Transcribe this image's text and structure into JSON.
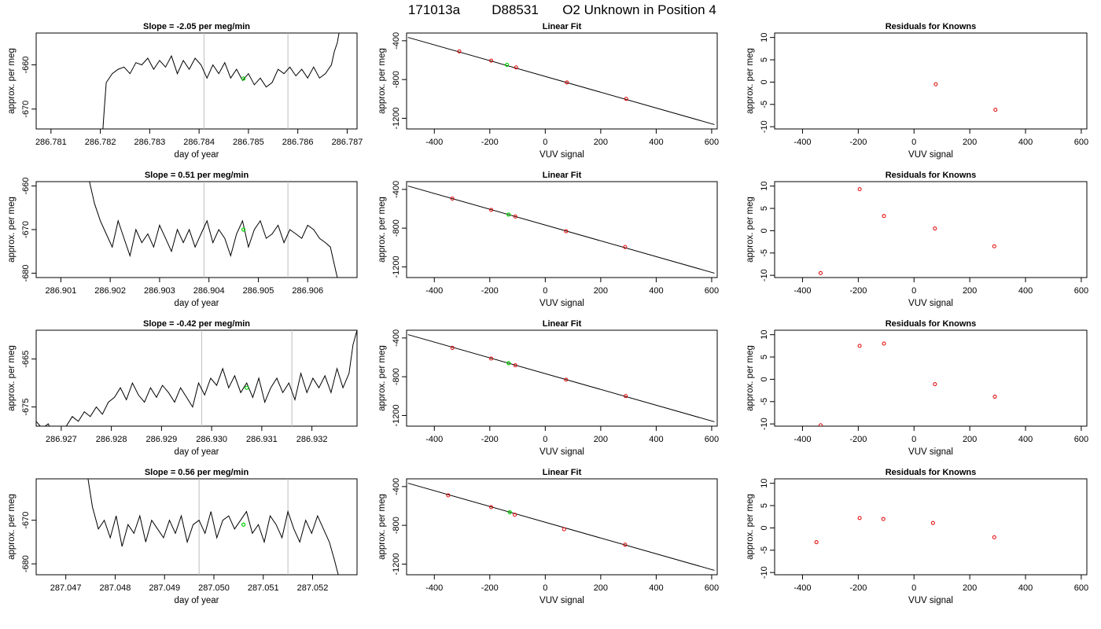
{
  "figure": {
    "title_parts": [
      "171013a",
      "D88531",
      "O2 Unknown in Position  4"
    ]
  },
  "chart_data": [
    {
      "type": "line",
      "title": "Slope =  -2.05  per meg/min",
      "xlabel": "day of year",
      "ylabel": "approx. per meg",
      "xlim": [
        286.7807,
        286.7872
      ],
      "ylim": [
        -674.5,
        -652.8
      ],
      "x_ticks": [
        286.781,
        286.782,
        286.783,
        286.784,
        286.785,
        286.786,
        286.787
      ],
      "x_tick_labels": [
        "286.781",
        "286.782",
        "286.783",
        "286.784",
        "286.785",
        "286.786",
        "286.787"
      ],
      "y_ticks": [
        -670,
        -660
      ],
      "y_tick_labels": [
        "-670",
        "-660"
      ],
      "vlines": [
        286.7841,
        286.7858
      ],
      "marker": {
        "x": 286.7849,
        "y": -663.1
      },
      "trace_x": [
        286.78205,
        286.78208,
        286.78212,
        286.78224,
        286.78236,
        286.78248,
        286.7826,
        286.78272,
        286.78284,
        286.78296,
        286.78308,
        286.7832,
        286.78332,
        286.78344,
        286.78356,
        286.78368,
        286.7838,
        286.78392,
        286.78404,
        286.78416,
        286.78428,
        286.7844,
        286.78452,
        286.78464,
        286.78476,
        286.78488,
        286.785,
        286.78512,
        286.78524,
        286.78536,
        286.78548,
        286.7856,
        286.78572,
        286.78584,
        286.78596,
        286.78608,
        286.7862,
        286.78632,
        286.78644,
        286.78656,
        286.78668,
        286.78674,
        286.7868,
        286.78684
      ],
      "trace_y": [
        -675,
        -670,
        -664,
        -662,
        -661,
        -660.5,
        -662,
        -659.5,
        -660,
        -658.5,
        -661,
        -659,
        -660.5,
        -658,
        -662,
        -659,
        -661,
        -658.5,
        -660,
        -663,
        -660,
        -662,
        -659.5,
        -663,
        -661,
        -663.5,
        -662,
        -664.5,
        -663,
        -665,
        -664,
        -661,
        -662,
        -660.5,
        -662.5,
        -661,
        -663,
        -660.5,
        -663,
        -662,
        -660,
        -657,
        -655,
        -652.5
      ]
    },
    {
      "type": "scatter",
      "title": "Linear Fit",
      "xlabel": "VUV signal",
      "ylabel": "approx. per meg",
      "xlim": [
        -500,
        620
      ],
      "ylim": [
        -1310,
        -320
      ],
      "x_ticks": [
        -400,
        -200,
        0,
        200,
        400,
        600
      ],
      "x_tick_labels": [
        "-400",
        "-200",
        "0",
        "200",
        "400",
        "600"
      ],
      "y_ticks": [
        -1200,
        -800,
        -400
      ],
      "y_tick_labels": [
        "-1200",
        "-800",
        "-400"
      ],
      "fit_line": {
        "x": [
          -495,
          610
        ],
        "y": [
          -365,
          -1265
        ]
      },
      "points": {
        "x": [
          -310,
          -195,
          -105,
          78,
          292
        ],
        "y": [
          -510,
          -605,
          -675,
          -830,
          -1000
        ]
      },
      "unknown": {
        "x": -138,
        "y": -648
      }
    },
    {
      "type": "scatter",
      "title": "Residuals for Knowns",
      "xlabel": "VUV signal",
      "ylabel": "approx. per meg",
      "xlim": [
        -500,
        620
      ],
      "ylim": [
        -10.5,
        11
      ],
      "x_ticks": [
        -400,
        -200,
        0,
        200,
        400,
        600
      ],
      "x_tick_labels": [
        "-400",
        "-200",
        "0",
        "200",
        "400",
        "600"
      ],
      "y_ticks": [
        -10,
        -5,
        0,
        5,
        10
      ],
      "y_tick_labels": [
        "-10",
        "-5",
        "0",
        "5",
        "10"
      ],
      "points": {
        "x": [
          78,
          292
        ],
        "y": [
          -0.5,
          -6.2
        ]
      }
    },
    {
      "type": "line",
      "title": "Slope =  0.51  per meg/min",
      "xlabel": "day of year",
      "ylabel": "approx. per meg",
      "xlim": [
        286.9005,
        286.907
      ],
      "ylim": [
        -681,
        -659
      ],
      "x_ticks": [
        286.901,
        286.902,
        286.903,
        286.904,
        286.905,
        286.906
      ],
      "x_tick_labels": [
        "286.901",
        "286.902",
        "286.903",
        "286.904",
        "286.905",
        "286.906"
      ],
      "y_ticks": [
        -680,
        -670,
        -660
      ],
      "y_tick_labels": [
        "-680",
        "-670",
        "-660"
      ],
      "vlines": [
        286.9039,
        286.9056
      ],
      "marker": {
        "x": 286.9047,
        "y": -670
      },
      "trace_x": [
        286.90158,
        286.90168,
        286.9018,
        286.90192,
        286.90204,
        286.90216,
        286.90228,
        286.9024,
        286.90252,
        286.90264,
        286.90276,
        286.90288,
        286.903,
        286.90312,
        286.90324,
        286.90336,
        286.90348,
        286.9036,
        286.90372,
        286.90384,
        286.90396,
        286.90408,
        286.9042,
        286.90432,
        286.90444,
        286.90456,
        286.90468,
        286.9048,
        286.90492,
        286.90504,
        286.90516,
        286.90528,
        286.9054,
        286.90552,
        286.90564,
        286.90576,
        286.90588,
        286.906,
        286.90612,
        286.90624,
        286.90636,
        286.90646,
        286.90654,
        286.9066
      ],
      "trace_y": [
        -659,
        -664,
        -668,
        -671,
        -674,
        -668,
        -672,
        -676,
        -670,
        -673,
        -671,
        -674,
        -669,
        -672,
        -675,
        -670,
        -673,
        -670,
        -674,
        -671,
        -668,
        -673,
        -670,
        -672,
        -676,
        -671,
        -668,
        -674,
        -670,
        -668,
        -672,
        -671,
        -669,
        -673,
        -670,
        -671,
        -672,
        -669,
        -670,
        -672,
        -673,
        -674,
        -678,
        -681
      ]
    },
    {
      "type": "scatter",
      "title": "Linear Fit",
      "xlabel": "VUV signal",
      "ylabel": "approx. per meg",
      "xlim": [
        -500,
        620
      ],
      "ylim": [
        -1310,
        -320
      ],
      "x_ticks": [
        -400,
        -200,
        0,
        200,
        400,
        600
      ],
      "x_tick_labels": [
        "-400",
        "-200",
        "0",
        "200",
        "400",
        "600"
      ],
      "y_ticks": [
        -1200,
        -800,
        -400
      ],
      "y_tick_labels": [
        "-1200",
        "-800",
        "-400"
      ],
      "fit_line": {
        "x": [
          -495,
          610
        ],
        "y": [
          -365,
          -1265
        ]
      },
      "points": {
        "x": [
          -335,
          -195,
          -108,
          75,
          288
        ],
        "y": [
          -495,
          -612,
          -680,
          -832,
          -995
        ]
      },
      "unknown": {
        "x": -132,
        "y": -660
      }
    },
    {
      "type": "scatter",
      "title": "Residuals for Knowns",
      "xlabel": "VUV signal",
      "ylabel": "approx. per meg",
      "xlim": [
        -500,
        620
      ],
      "ylim": [
        -10.5,
        11
      ],
      "x_ticks": [
        -400,
        -200,
        0,
        200,
        400,
        600
      ],
      "x_tick_labels": [
        "-400",
        "-200",
        "0",
        "200",
        "400",
        "600"
      ],
      "y_ticks": [
        -10,
        -5,
        0,
        5,
        10
      ],
      "y_tick_labels": [
        "-10",
        "-5",
        "0",
        "5",
        "10"
      ],
      "points": {
        "x": [
          -335,
          -195,
          -108,
          75,
          288
        ],
        "y": [
          -9.5,
          9.3,
          3.3,
          0.5,
          -3.5
        ]
      }
    },
    {
      "type": "line",
      "title": "Slope =  -0.42  per meg/min",
      "xlabel": "day of year",
      "ylabel": "approx. per meg",
      "xlim": [
        286.9265,
        286.9329
      ],
      "ylim": [
        -679,
        -659
      ],
      "x_ticks": [
        286.927,
        286.928,
        286.929,
        286.93,
        286.931,
        286.932
      ],
      "x_tick_labels": [
        "286.927",
        "286.928",
        "286.929",
        "286.930",
        "286.931",
        "286.932"
      ],
      "y_ticks": [
        -675,
        -665
      ],
      "y_tick_labels": [
        "-675",
        "-665"
      ],
      "vlines": [
        286.9298,
        286.9316
      ],
      "marker": {
        "x": 286.9307,
        "y": -671
      },
      "trace_x": [
        286.9265,
        286.92662,
        286.92674,
        286.92686,
        286.92698,
        286.9271,
        286.92722,
        286.92734,
        286.92746,
        286.92758,
        286.9277,
        286.92782,
        286.92794,
        286.92806,
        286.92818,
        286.9283,
        286.92842,
        286.92854,
        286.92866,
        286.92878,
        286.9289,
        286.92902,
        286.92914,
        286.92926,
        286.92938,
        286.9295,
        286.92962,
        286.92974,
        286.92986,
        286.92998,
        286.9301,
        286.93022,
        286.93034,
        286.93046,
        286.93058,
        286.9307,
        286.93082,
        286.93094,
        286.93106,
        286.93118,
        286.9313,
        286.93142,
        286.93154,
        286.93166,
        286.93178,
        286.9319,
        286.93202,
        286.93214,
        286.93226,
        286.93238,
        286.9325,
        286.93262,
        286.93274,
        286.93282,
        286.9329
      ],
      "trace_y": [
        -678,
        -679.5,
        -678.5,
        -681,
        -680,
        -679,
        -677,
        -678,
        -676,
        -677,
        -675,
        -676.5,
        -674,
        -673,
        -671,
        -673.5,
        -670,
        -672.5,
        -674,
        -671,
        -673,
        -670.5,
        -672,
        -674,
        -671,
        -673,
        -675,
        -670,
        -672.5,
        -669,
        -670.5,
        -667,
        -671,
        -668.5,
        -672,
        -670,
        -673,
        -669,
        -674,
        -671,
        -669,
        -672,
        -670,
        -673.5,
        -668,
        -672,
        -669,
        -671,
        -668.5,
        -672,
        -667,
        -671,
        -668,
        -662,
        -659
      ]
    },
    {
      "type": "scatter",
      "title": "Linear Fit",
      "xlabel": "VUV signal",
      "ylabel": "approx. per meg",
      "xlim": [
        -500,
        620
      ],
      "ylim": [
        -1310,
        -320
      ],
      "x_ticks": [
        -400,
        -200,
        0,
        200,
        400,
        600
      ],
      "x_tick_labels": [
        "-400",
        "-200",
        "0",
        "200",
        "400",
        "600"
      ],
      "y_ticks": [
        -1200,
        -800,
        -400
      ],
      "y_tick_labels": [
        "-1200",
        "-800",
        "-400"
      ],
      "fit_line": {
        "x": [
          -495,
          610
        ],
        "y": [
          -365,
          -1265
        ]
      },
      "points": {
        "x": [
          -335,
          -195,
          -108,
          75,
          290
        ],
        "y": [
          -502,
          -612,
          -682,
          -830,
          -1000
        ]
      },
      "unknown": {
        "x": -132,
        "y": -660
      }
    },
    {
      "type": "scatter",
      "title": "Residuals for Knowns",
      "xlabel": "VUV signal",
      "ylabel": "approx. per meg",
      "xlim": [
        -500,
        620
      ],
      "ylim": [
        -10.5,
        11
      ],
      "x_ticks": [
        -400,
        -200,
        0,
        200,
        400,
        600
      ],
      "x_tick_labels": [
        "-400",
        "-200",
        "0",
        "200",
        "400",
        "600"
      ],
      "y_ticks": [
        -10,
        -5,
        0,
        5,
        10
      ],
      "y_tick_labels": [
        "-10",
        "-5",
        "0",
        "5",
        "10"
      ],
      "points": {
        "x": [
          -335,
          -195,
          -108,
          75,
          290
        ],
        "y": [
          -10.3,
          7.5,
          8.0,
          -1.1,
          -3.9
        ]
      }
    },
    {
      "type": "line",
      "title": "Slope =  0.56  per meg/min",
      "xlabel": "day of year",
      "ylabel": "approx. per meg",
      "xlim": [
        287.0464,
        287.0529
      ],
      "ylim": [
        -682.5,
        -660.5
      ],
      "x_ticks": [
        287.047,
        287.048,
        287.049,
        287.05,
        287.051,
        287.052
      ],
      "x_tick_labels": [
        "287.047",
        "287.048",
        "287.049",
        "287.050",
        "287.051",
        "287.052"
      ],
      "y_ticks": [
        -680,
        -670
      ],
      "y_tick_labels": [
        "-680",
        "-670"
      ],
      "vlines": [
        287.0497,
        287.0515
      ],
      "marker": {
        "x": 287.0506,
        "y": -671
      },
      "trace_x": [
        287.04745,
        287.04754,
        287.04766,
        287.04778,
        287.0479,
        287.04802,
        287.04814,
        287.04826,
        287.04838,
        287.0485,
        287.04862,
        287.04874,
        287.04886,
        287.04898,
        287.0491,
        287.04922,
        287.04934,
        287.04946,
        287.04958,
        287.0497,
        287.04982,
        287.04994,
        287.05006,
        287.05018,
        287.0503,
        287.05042,
        287.05054,
        287.05066,
        287.05078,
        287.0509,
        287.05102,
        287.05114,
        287.05126,
        287.05138,
        287.0515,
        287.05162,
        287.05174,
        287.05186,
        287.05198,
        287.0521,
        287.05222,
        287.05234,
        287.05244,
        287.05252
      ],
      "trace_y": [
        -660.5,
        -667,
        -672,
        -670,
        -674,
        -669,
        -676,
        -671,
        -673,
        -669,
        -675,
        -670,
        -672,
        -674,
        -670,
        -673,
        -669,
        -675,
        -671,
        -670,
        -673,
        -668,
        -674,
        -670,
        -669,
        -672,
        -670,
        -668,
        -673,
        -671,
        -675,
        -669,
        -671,
        -674,
        -668,
        -672,
        -675,
        -670,
        -673,
        -669,
        -672,
        -675,
        -679,
        -682.5
      ]
    },
    {
      "type": "scatter",
      "title": "Linear Fit",
      "xlabel": "VUV signal",
      "ylabel": "approx. per meg",
      "xlim": [
        -500,
        620
      ],
      "ylim": [
        -1310,
        -320
      ],
      "x_ticks": [
        -400,
        -200,
        0,
        200,
        400,
        600
      ],
      "x_tick_labels": [
        "-400",
        "-200",
        "0",
        "200",
        "400",
        "600"
      ],
      "y_ticks": [
        -1200,
        -800,
        -400
      ],
      "y_tick_labels": [
        "-1200",
        "-800",
        "-400"
      ],
      "fit_line": {
        "x": [
          -495,
          610
        ],
        "y": [
          -365,
          -1265
        ]
      },
      "points": {
        "x": [
          -350,
          -195,
          -110,
          68,
          288
        ],
        "y": [
          -490,
          -612,
          -690,
          -840,
          -1000
        ]
      },
      "unknown": {
        "x": -128,
        "y": -665
      }
    },
    {
      "type": "scatter",
      "title": "Residuals for Knowns",
      "xlabel": "VUV signal",
      "ylabel": "approx. per meg",
      "xlim": [
        -500,
        620
      ],
      "ylim": [
        -10.5,
        11
      ],
      "x_ticks": [
        -400,
        -200,
        0,
        200,
        400,
        600
      ],
      "x_tick_labels": [
        "-400",
        "-200",
        "0",
        "200",
        "400",
        "600"
      ],
      "y_ticks": [
        -10,
        -5,
        0,
        5,
        10
      ],
      "y_tick_labels": [
        "-10",
        "-5",
        "0",
        "5",
        "10"
      ],
      "points": {
        "x": [
          -350,
          -195,
          -110,
          68,
          288
        ],
        "y": [
          -3.2,
          2.2,
          2.0,
          1.1,
          -2.1
        ]
      }
    }
  ]
}
